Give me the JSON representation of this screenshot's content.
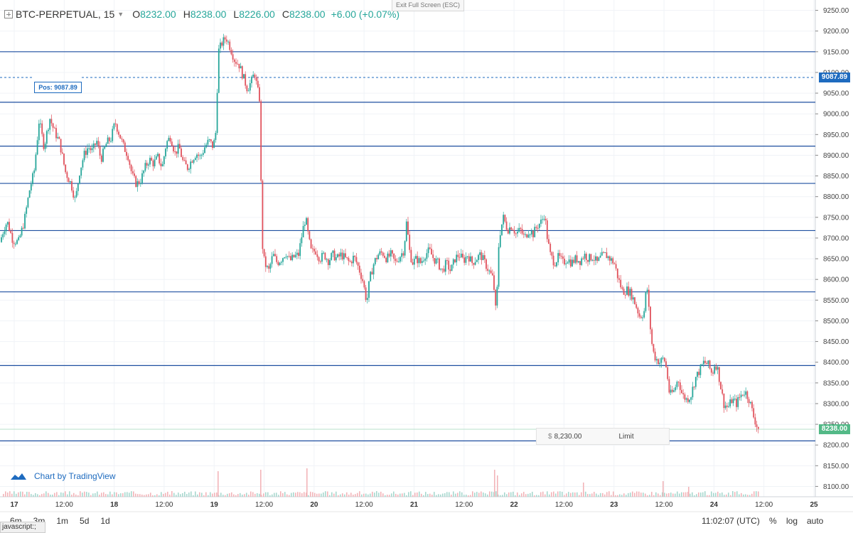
{
  "header": {
    "symbol": "BTC-PERPETUAL, 15",
    "open_label": "O",
    "open": "8232.00",
    "high_label": "H",
    "high": "8238.00",
    "low_label": "L",
    "low": "8226.00",
    "close_label": "C",
    "close": "8238.00",
    "change": "+6.00 (+0.07%)"
  },
  "exit_fullscreen": "Exit Full Screen (ESC)",
  "position": {
    "label": "Pos: 9087.89",
    "price": 9087.89,
    "axis_label": "9087.89"
  },
  "last_price": {
    "price": 8238.0,
    "axis_label": "8238.00"
  },
  "order": {
    "currency": "$",
    "price": "8,230.00",
    "type": "Limit"
  },
  "branding": "Chart by TradingView",
  "ranges": [
    "6m",
    "3m",
    "1m",
    "5d",
    "1d"
  ],
  "time_display": "11:02:07 (UTC)",
  "percent_btn": "%",
  "log_btn": "log",
  "auto_btn": "auto",
  "status_text": "javascript:;",
  "colors": {
    "up": "#26a69a",
    "down": "#e0525c",
    "level_line": "#1e4fa0",
    "position": "#1e6bbf",
    "last": "#53b987"
  },
  "chart_data": {
    "type": "candlestick",
    "timeframe": "15",
    "ylim": [
      8075,
      9275
    ],
    "y_ticks": [
      9250,
      9200,
      9150,
      9100,
      9050,
      9000,
      8950,
      8900,
      8850,
      8800,
      8750,
      8700,
      8650,
      8600,
      8550,
      8500,
      8450,
      8400,
      8350,
      8300,
      8250,
      8200,
      8150,
      8100
    ],
    "x_ticks": [
      "17",
      "12:00",
      "18",
      "12:00",
      "19",
      "12:00",
      "20",
      "12:00",
      "21",
      "12:00",
      "22",
      "12:00",
      "23",
      "12:00",
      "24",
      "12:00",
      "25"
    ],
    "horizontal_levels": [
      9150,
      9028,
      8922,
      8832,
      8718,
      8570,
      8392,
      8210
    ],
    "price_path": [
      [
        0,
        8690
      ],
      [
        5,
        8720
      ],
      [
        10,
        8740
      ],
      [
        18,
        8695
      ],
      [
        26,
        8690
      ],
      [
        34,
        8740
      ],
      [
        42,
        8820
      ],
      [
        48,
        8860
      ],
      [
        55,
        8985
      ],
      [
        62,
        8920
      ],
      [
        70,
        8990
      ],
      [
        76,
        8960
      ],
      [
        84,
        8930
      ],
      [
        92,
        8860
      ],
      [
        100,
        8830
      ],
      [
        106,
        8790
      ],
      [
        112,
        8860
      ],
      [
        118,
        8900
      ],
      [
        124,
        8920
      ],
      [
        130,
        8910
      ],
      [
        136,
        8935
      ],
      [
        142,
        8890
      ],
      [
        150,
        8930
      ],
      [
        156,
        8940
      ],
      [
        162,
        8980
      ],
      [
        168,
        8950
      ],
      [
        174,
        8920
      ],
      [
        180,
        8900
      ],
      [
        186,
        8850
      ],
      [
        192,
        8830
      ],
      [
        198,
        8840
      ],
      [
        204,
        8870
      ],
      [
        210,
        8890
      ],
      [
        216,
        8880
      ],
      [
        222,
        8895
      ],
      [
        228,
        8870
      ],
      [
        234,
        8930
      ],
      [
        240,
        8945
      ],
      [
        246,
        8905
      ],
      [
        252,
        8920
      ],
      [
        258,
        8880
      ],
      [
        264,
        8870
      ],
      [
        270,
        8890
      ],
      [
        276,
        8905
      ],
      [
        282,
        8895
      ],
      [
        288,
        8920
      ],
      [
        294,
        8935
      ],
      [
        300,
        8920
      ],
      [
        304,
        8960
      ],
      [
        307,
        9150
      ],
      [
        312,
        9170
      ],
      [
        318,
        9185
      ],
      [
        324,
        9160
      ],
      [
        330,
        9130
      ],
      [
        336,
        9120
      ],
      [
        342,
        9090
      ],
      [
        348,
        9060
      ],
      [
        354,
        9080
      ],
      [
        358,
        9100
      ],
      [
        362,
        9060
      ],
      [
        366,
        9030
      ],
      [
        368,
        8700
      ],
      [
        372,
        8640
      ],
      [
        378,
        8620
      ],
      [
        384,
        8660
      ],
      [
        390,
        8640
      ],
      [
        396,
        8650
      ],
      [
        402,
        8665
      ],
      [
        408,
        8645
      ],
      [
        414,
        8655
      ],
      [
        420,
        8660
      ],
      [
        426,
        8720
      ],
      [
        430,
        8750
      ],
      [
        434,
        8700
      ],
      [
        438,
        8665
      ],
      [
        444,
        8670
      ],
      [
        450,
        8650
      ],
      [
        456,
        8660
      ],
      [
        462,
        8645
      ],
      [
        468,
        8660
      ],
      [
        474,
        8650
      ],
      [
        480,
        8660
      ],
      [
        486,
        8650
      ],
      [
        492,
        8640
      ],
      [
        498,
        8655
      ],
      [
        504,
        8630
      ],
      [
        510,
        8600
      ],
      [
        516,
        8545
      ],
      [
        520,
        8600
      ],
      [
        526,
        8640
      ],
      [
        532,
        8660
      ],
      [
        538,
        8665
      ],
      [
        544,
        8650
      ],
      [
        550,
        8660
      ],
      [
        556,
        8640
      ],
      [
        562,
        8655
      ],
      [
        568,
        8670
      ],
      [
        572,
        8740
      ],
      [
        576,
        8670
      ],
      [
        580,
        8640
      ],
      [
        586,
        8650
      ],
      [
        592,
        8640
      ],
      [
        598,
        8660
      ],
      [
        604,
        8670
      ],
      [
        610,
        8650
      ],
      [
        616,
        8640
      ],
      [
        622,
        8620
      ],
      [
        628,
        8640
      ],
      [
        634,
        8620
      ],
      [
        640,
        8650
      ],
      [
        646,
        8660
      ],
      [
        652,
        8645
      ],
      [
        658,
        8660
      ],
      [
        664,
        8640
      ],
      [
        670,
        8650
      ],
      [
        676,
        8660
      ],
      [
        682,
        8640
      ],
      [
        688,
        8620
      ],
      [
        694,
        8600
      ],
      [
        698,
        8510
      ],
      [
        702,
        8700
      ],
      [
        708,
        8750
      ],
      [
        714,
        8720
      ],
      [
        720,
        8730
      ],
      [
        726,
        8710
      ],
      [
        732,
        8720
      ],
      [
        738,
        8700
      ],
      [
        744,
        8720
      ],
      [
        750,
        8710
      ],
      [
        756,
        8730
      ],
      [
        762,
        8740
      ],
      [
        766,
        8760
      ],
      [
        770,
        8700
      ],
      [
        774,
        8660
      ],
      [
        780,
        8640
      ],
      [
        786,
        8655
      ],
      [
        792,
        8640
      ],
      [
        798,
        8650
      ],
      [
        804,
        8640
      ],
      [
        810,
        8650
      ],
      [
        816,
        8645
      ],
      [
        822,
        8660
      ],
      [
        828,
        8650
      ],
      [
        834,
        8655
      ],
      [
        840,
        8640
      ],
      [
        846,
        8655
      ],
      [
        852,
        8660
      ],
      [
        858,
        8650
      ],
      [
        864,
        8640
      ],
      [
        870,
        8600
      ],
      [
        876,
        8570
      ],
      [
        882,
        8575
      ],
      [
        888,
        8565
      ],
      [
        894,
        8540
      ],
      [
        900,
        8510
      ],
      [
        906,
        8520
      ],
      [
        910,
        8590
      ],
      [
        914,
        8500
      ],
      [
        918,
        8430
      ],
      [
        922,
        8410
      ],
      [
        928,
        8400
      ],
      [
        934,
        8410
      ],
      [
        938,
        8380
      ],
      [
        942,
        8320
      ],
      [
        948,
        8330
      ],
      [
        954,
        8360
      ],
      [
        960,
        8320
      ],
      [
        966,
        8310
      ],
      [
        972,
        8320
      ],
      [
        978,
        8360
      ],
      [
        984,
        8380
      ],
      [
        990,
        8400
      ],
      [
        996,
        8395
      ],
      [
        1002,
        8370
      ],
      [
        1006,
        8400
      ],
      [
        1010,
        8380
      ],
      [
        1014,
        8340
      ],
      [
        1018,
        8300
      ],
      [
        1024,
        8290
      ],
      [
        1030,
        8310
      ],
      [
        1036,
        8300
      ],
      [
        1042,
        8320
      ],
      [
        1048,
        8330
      ],
      [
        1054,
        8310
      ],
      [
        1060,
        8270
      ],
      [
        1066,
        8240
      ],
      [
        1070,
        8238
      ]
    ],
    "volume_spikes": [
      [
        306,
        36
      ],
      [
        366,
        38
      ],
      [
        431,
        40
      ],
      [
        695,
        38
      ],
      [
        699,
        30
      ],
      [
        820,
        20
      ],
      [
        932,
        22
      ],
      [
        968,
        14
      ]
    ]
  }
}
